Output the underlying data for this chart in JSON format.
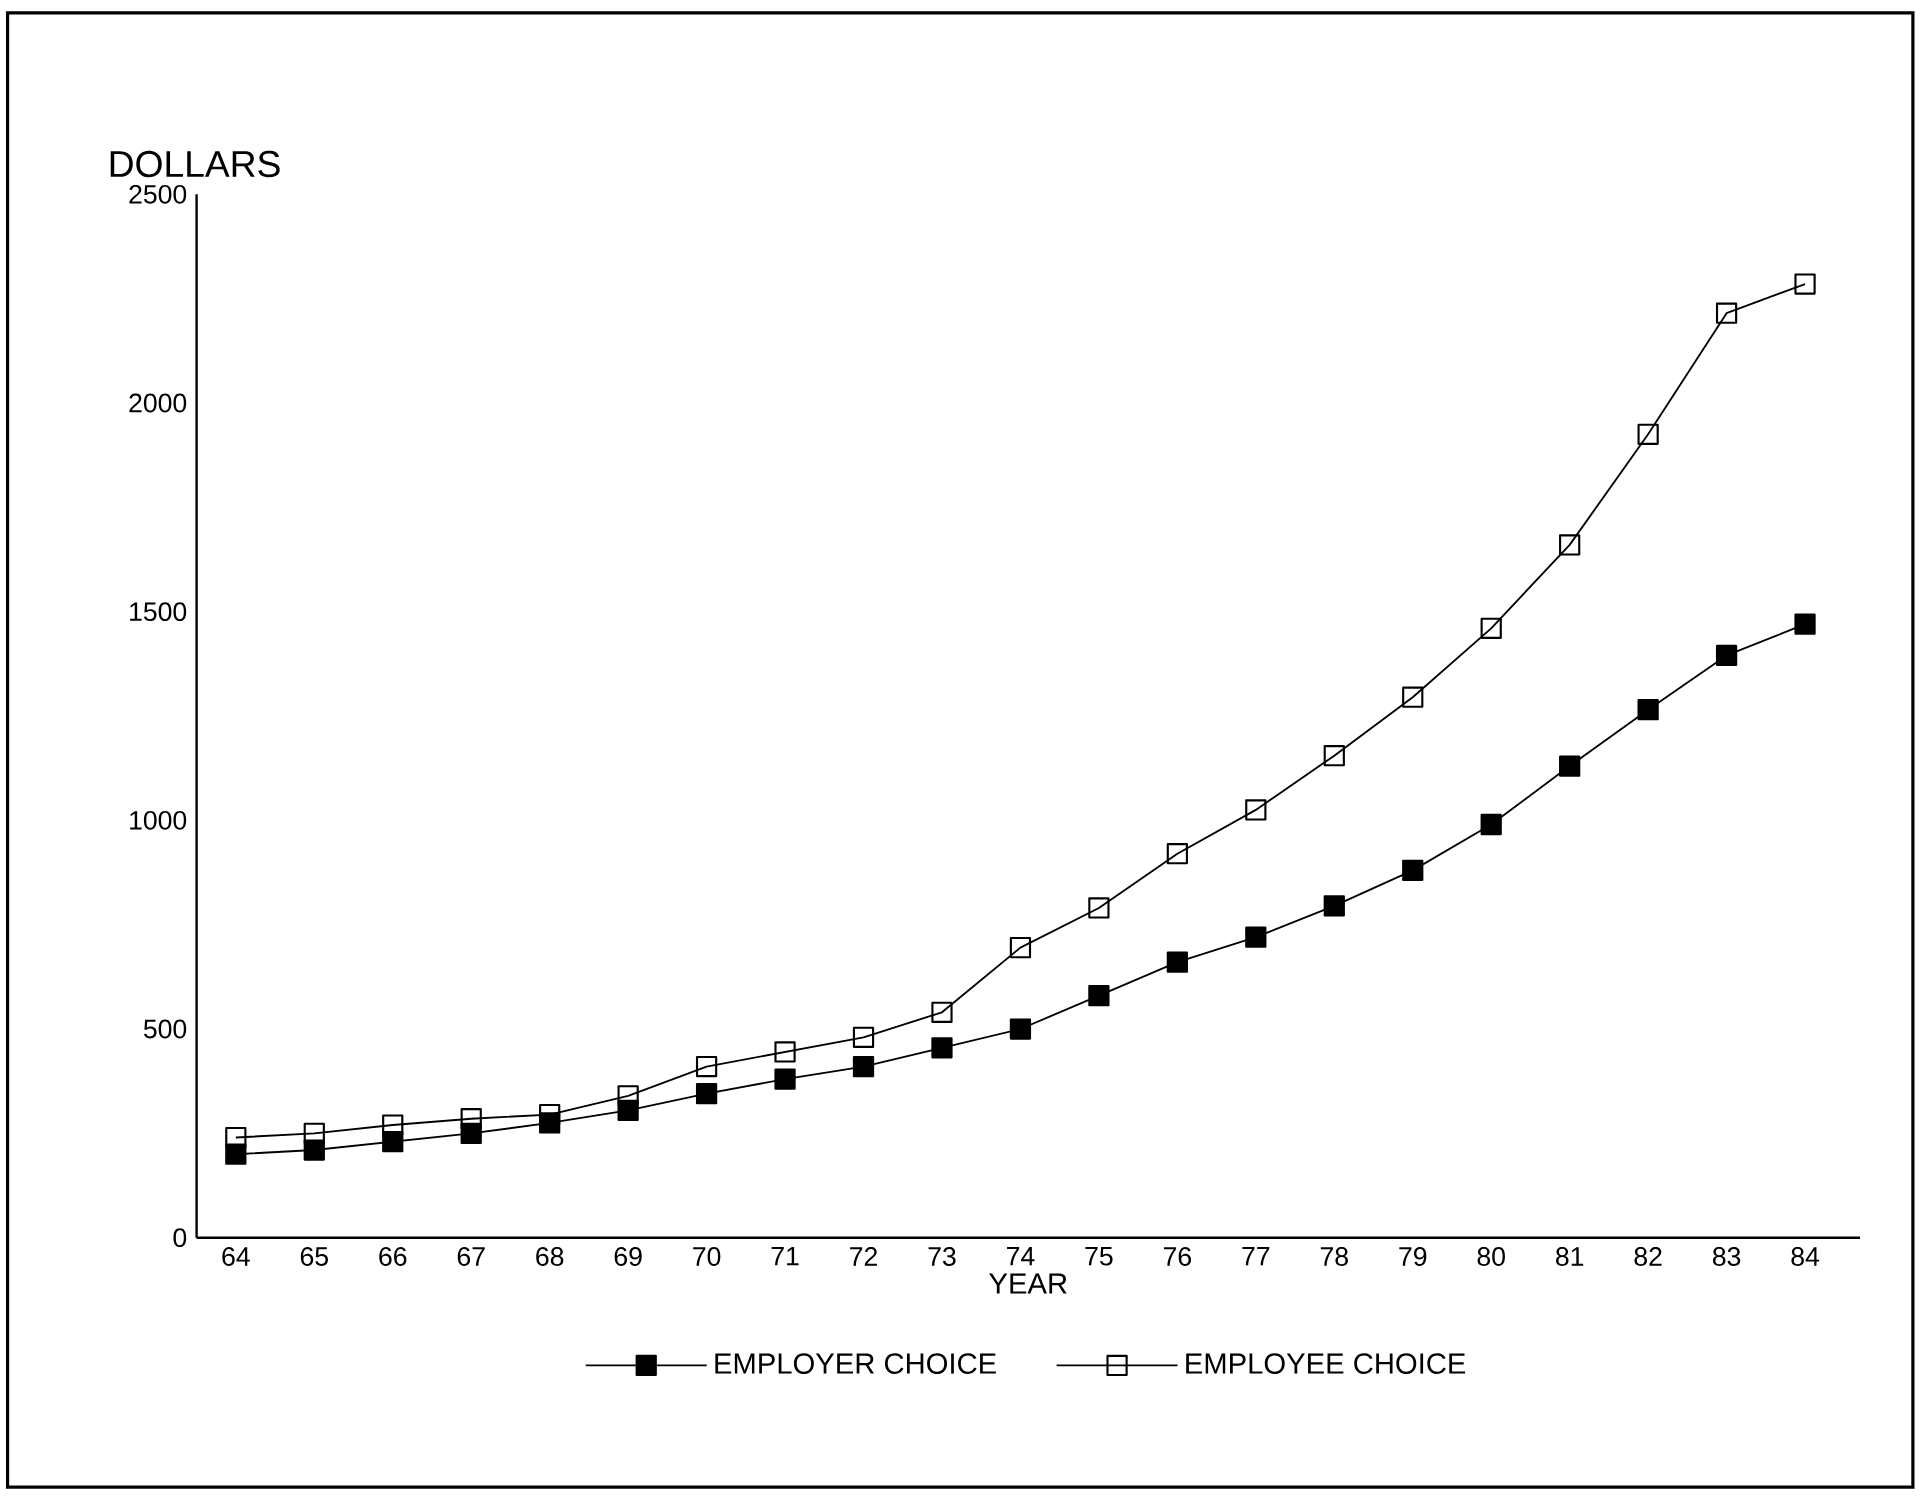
{
  "chart_data": {
    "type": "line",
    "ylabel": "DOLLARS",
    "xlabel": "YEAR",
    "categories": [
      "64",
      "65",
      "66",
      "67",
      "68",
      "69",
      "70",
      "71",
      "72",
      "73",
      "74",
      "75",
      "76",
      "77",
      "78",
      "79",
      "80",
      "81",
      "82",
      "83",
      "84"
    ],
    "series": [
      {
        "name": "EMPLOYER CHOICE",
        "color": "#000000",
        "marker": "square*",
        "values": [
          200,
          210,
          230,
          250,
          275,
          305,
          345,
          380,
          410,
          455,
          500,
          580,
          660,
          720,
          795,
          880,
          990,
          1130,
          1265,
          1395,
          1470
        ]
      },
      {
        "name": "EMPLOYEE CHOICE",
        "color": "#000000",
        "marker": "square",
        "values": [
          240,
          250,
          270,
          285,
          295,
          340,
          410,
          445,
          480,
          540,
          695,
          790,
          920,
          1025,
          1155,
          1295,
          1460,
          1660,
          1925,
          2215,
          2285
        ]
      }
    ],
    "ylim": [
      0,
      2500
    ],
    "yticks": [
      0,
      500,
      1000,
      1500,
      2000,
      2500
    ],
    "grid": false,
    "legend": "bottom",
    "line_style": "solid"
  }
}
